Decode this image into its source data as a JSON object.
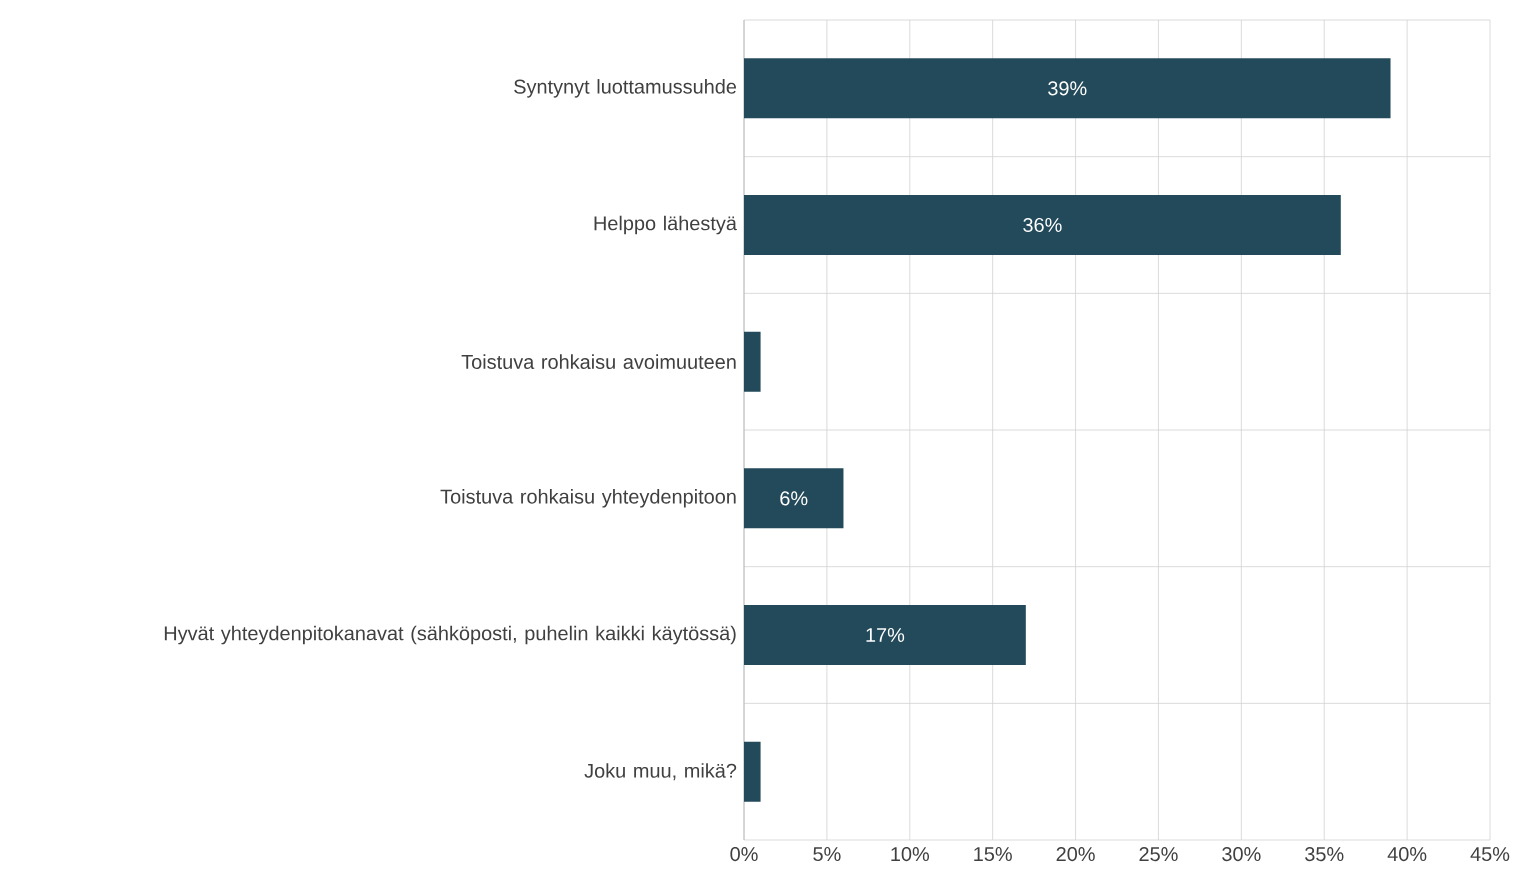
{
  "chart_data": {
    "type": "bar",
    "orientation": "horizontal",
    "categories": [
      "Syntynyt luottamussuhde",
      "Helppo lähestyä",
      "Toistuva rohkaisu avoimuuteen",
      "Toistuva rohkaisu yhteydenpitoon",
      "Hyvät yhteydenpitokanavat (sähköposti, puhelin kaikki käytössä)",
      "Joku muu, mikä?"
    ],
    "values": [
      39,
      36,
      1,
      6,
      17,
      1
    ],
    "value_labels": [
      "39%",
      "36%",
      null,
      "6%",
      "17%",
      null
    ],
    "color": "#234a5a",
    "xlim": [
      0,
      45
    ],
    "xticks": [
      {
        "value": 0,
        "label": "0%"
      },
      {
        "value": 5,
        "label": "5%"
      },
      {
        "value": 10,
        "label": "10%"
      },
      {
        "value": 15,
        "label": "15%"
      },
      {
        "value": 20,
        "label": "20%"
      },
      {
        "value": 25,
        "label": "25%"
      },
      {
        "value": 30,
        "label": "30%"
      },
      {
        "value": 35,
        "label": "35%"
      },
      {
        "value": 40,
        "label": "40%"
      },
      {
        "value": 45,
        "label": "45%"
      }
    ],
    "grid": true
  }
}
